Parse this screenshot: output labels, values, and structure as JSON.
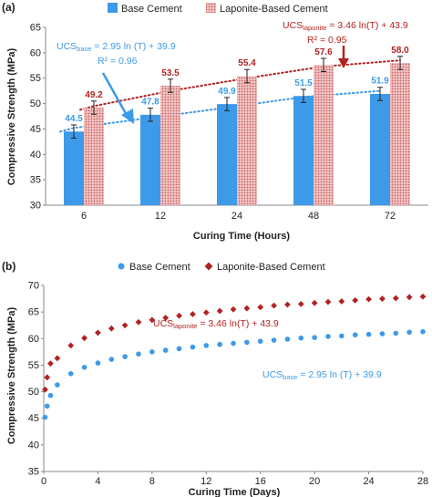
{
  "chart_data": [
    {
      "panel_label": "(a)",
      "type": "bar",
      "xlabel": "Curing Time (Hours)",
      "ylabel": "Compressive Strength (MPa)",
      "ylim": [
        30,
        65
      ],
      "yticks": [
        30,
        35,
        40,
        45,
        50,
        55,
        60,
        65
      ],
      "categories": [
        "6",
        "12",
        "24",
        "48",
        "72"
      ],
      "series": [
        {
          "name": "Base Cement",
          "values": [
            44.5,
            47.8,
            49.9,
            51.5,
            51.9
          ],
          "labels": [
            "44.5",
            "47.8",
            "49.9",
            "51.5",
            "51.9"
          ],
          "error": [
            1.3,
            1.3,
            1.3,
            1.3,
            1.3
          ],
          "color": "#3d9ae8",
          "label_color": "#3d9ae8"
        },
        {
          "name": "Laponite-Based Cement",
          "values": [
            49.2,
            53.5,
            55.4,
            57.6,
            58.0
          ],
          "labels": [
            "49.2",
            "53.5",
            "55.4",
            "57.6",
            "58.0"
          ],
          "error": [
            1.3,
            1.3,
            1.3,
            1.3,
            1.3
          ],
          "color": "#e8a0a0",
          "label_color": "#b22222"
        }
      ],
      "trendlines": [
        {
          "series": "Base Cement",
          "style": "dotted",
          "color": "#3d9ae8",
          "values": [
            45.2,
            47.2,
            49.2,
            51.3,
            52.5
          ]
        },
        {
          "series": "Laponite-Based Cement",
          "style": "dotted",
          "color": "#b22222",
          "values": [
            49.5,
            52.5,
            55.0,
            57.3,
            58.5
          ]
        }
      ],
      "legend": {
        "placement": "top",
        "entries": [
          "Base Cement",
          "Laponite-Based Cement"
        ]
      },
      "annotations": [
        {
          "id": "base",
          "prefix": "UCS",
          "sub": "base",
          "equation": " = 2.95 ln (T) + 39.9",
          "r2": "R² = 0.96",
          "color": "#3d9ae8"
        },
        {
          "id": "lap",
          "prefix": "UCS",
          "sub": "laponite",
          "equation": " = 3.46 ln(T) + 43.9",
          "r2": "R² = 0.95",
          "color": "#b22222"
        }
      ],
      "grid": false
    },
    {
      "panel_label": "(b)",
      "type": "scatter",
      "xlabel": "Curing Time (Days)",
      "ylabel": "Compressive Strength (MPa)",
      "xlim": [
        0,
        28
      ],
      "ylim": [
        35,
        70
      ],
      "xticks": [
        0,
        4,
        8,
        12,
        16,
        20,
        24,
        28
      ],
      "yticks": [
        35,
        40,
        45,
        50,
        55,
        60,
        65,
        70
      ],
      "series": [
        {
          "name": "Base Cement",
          "marker": "circle",
          "color": "#3d9ae8",
          "x": [
            0.1,
            0.25,
            0.5,
            1,
            2,
            3,
            4,
            5,
            6,
            7,
            8,
            9,
            10,
            11,
            12,
            13,
            14,
            15,
            16,
            17,
            18,
            19,
            20,
            21,
            22,
            23,
            24,
            25,
            26,
            27,
            28
          ],
          "y": [
            45.2,
            47.3,
            49.3,
            51.3,
            53.4,
            54.6,
            55.4,
            56.1,
            56.6,
            57.1,
            57.5,
            57.8,
            58.1,
            58.4,
            58.7,
            58.9,
            59.1,
            59.3,
            59.5,
            59.7,
            59.9,
            60.1,
            60.2,
            60.4,
            60.5,
            60.7,
            60.8,
            60.9,
            61.0,
            61.2,
            61.3
          ]
        },
        {
          "name": "Laponite-Based Cement",
          "marker": "diamond",
          "color": "#b22222",
          "x": [
            0.1,
            0.25,
            0.5,
            1,
            2,
            3,
            4,
            5,
            6,
            7,
            8,
            9,
            10,
            11,
            12,
            13,
            14,
            15,
            16,
            17,
            18,
            19,
            20,
            21,
            22,
            23,
            24,
            25,
            26,
            27,
            28
          ],
          "y": [
            50.4,
            52.7,
            55.3,
            56.3,
            58.7,
            60.1,
            61.1,
            61.9,
            62.5,
            63.1,
            63.5,
            63.9,
            64.3,
            64.6,
            64.9,
            65.2,
            65.5,
            65.7,
            65.9,
            66.2,
            66.4,
            66.5,
            66.7,
            66.9,
            67.0,
            67.2,
            67.4,
            67.5,
            67.6,
            67.8,
            67.9
          ]
        }
      ],
      "legend": {
        "placement": "top",
        "entries": [
          "Base Cement",
          "Laponite-Based Cement"
        ]
      },
      "annotations": [
        {
          "id": "lap",
          "prefix": "UCS",
          "sub": "laponite",
          "equation": " = 3.46 ln(T) + 43.9",
          "color": "#b22222"
        },
        {
          "id": "base",
          "prefix": "UCS",
          "sub": "base",
          "equation": " = 2.95 ln (T) + 39.9",
          "color": "#3d9ae8"
        }
      ],
      "grid": false
    }
  ]
}
